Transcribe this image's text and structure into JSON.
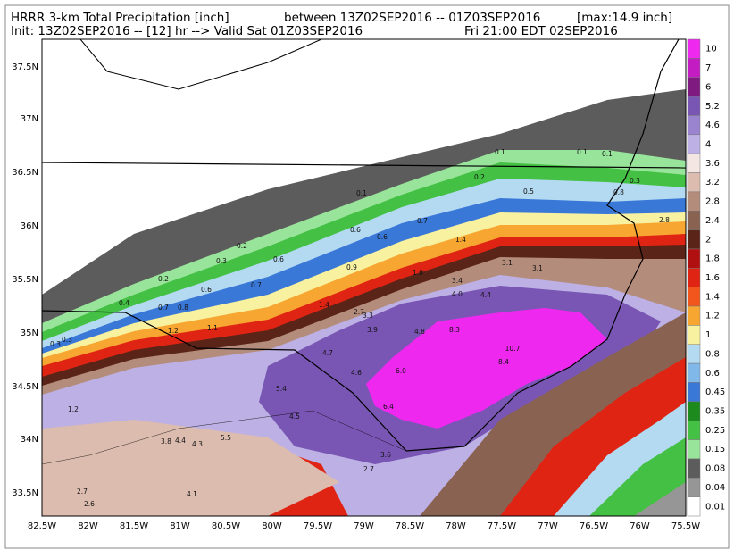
{
  "header": {
    "line1": [
      "HRRR 3-km Total Precipitation [inch]",
      "between 13Z02SEP2016 -- 01Z03SEP2016",
      "[max:14.9 inch]"
    ],
    "line2": [
      "Init: 13Z02SEP2016 -- [12] hr --> Valid Sat 01Z03SEP2016",
      "Fri 21:00 EDT 02SEP2016"
    ]
  },
  "lat_labels": [
    "37.5N",
    "37N",
    "36.5N",
    "36N",
    "35.5N",
    "35N",
    "34.5N",
    "34N",
    "33.5N"
  ],
  "lon_labels": [
    "82.5W",
    "82W",
    "81.5W",
    "81W",
    "80.5W",
    "80W",
    "79.5W",
    "79W",
    "78.5W",
    "78W",
    "77.5W",
    "77W",
    "76.5W",
    "76W",
    "75.5W"
  ],
  "colorbar": {
    "labels": [
      "10",
      "7",
      "6",
      "5.2",
      "4.6",
      "4",
      "3.6",
      "3.2",
      "2.8",
      "2.4",
      "2",
      "1.8",
      "1.6",
      "1.4",
      "1.2",
      "1",
      "0.8",
      "0.6",
      "0.45",
      "0.35",
      "0.25",
      "0.15",
      "0.08",
      "0.04",
      "0.01"
    ],
    "colors": [
      "#ee28ee",
      "#c21cc2",
      "#7e1a80",
      "#7a56b4",
      "#9a84d0",
      "#bcb0e4",
      "#f4e6e2",
      "#dcbcae",
      "#b48c7c",
      "#8a6252",
      "#5a2418",
      "#b01010",
      "#e02414",
      "#f2561c",
      "#f8a632",
      "#f8f2a0",
      "#b4daf2",
      "#80b8ea",
      "#3a78d8",
      "#1c8a1c",
      "#44c044",
      "#98e49a",
      "#5c5c5c",
      "#969696",
      "#ffffff"
    ]
  },
  "map_labels": [
    "0.1",
    "0.1",
    "0.1",
    "0.2",
    "0.5",
    "0.8",
    "0.3",
    "0.1",
    "0.6",
    "0.6",
    "0.7",
    "1.4",
    "2.8",
    "0.2",
    "0.3",
    "0.6",
    "0.2",
    "0.6",
    "0.7",
    "0.9",
    "1.6",
    "3.1",
    "3.1",
    "3.4",
    "4.0",
    "4.4",
    "0.4",
    "0.7",
    "0.8",
    "1.4",
    "2.7",
    "3.3",
    "1.1",
    "1.2",
    "3.9",
    "4.8",
    "8.3",
    "10.7",
    "8.4",
    "0.3",
    "0.3",
    "4.7",
    "4.6",
    "6.0",
    "5.4",
    "6.4",
    "4.5",
    "1.2",
    "3.8",
    "4.4",
    "4.3",
    "5.5",
    "3.6",
    "2.7",
    "4.1",
    "2.7",
    "2.6"
  ]
}
